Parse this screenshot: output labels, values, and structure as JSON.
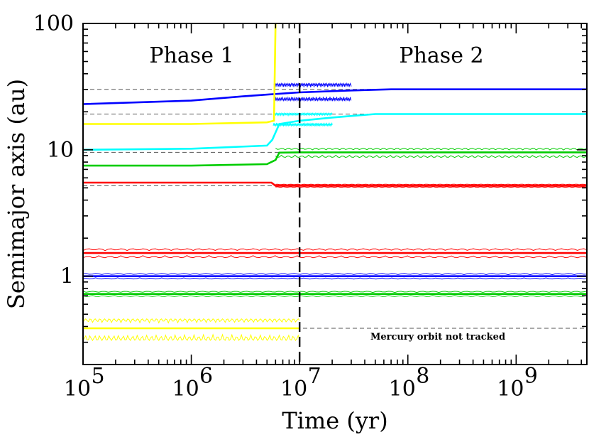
{
  "chart_data": {
    "type": "line",
    "xlabel": "Time (yr)",
    "ylabel": "Semimajor axis (au)",
    "xscale": "log",
    "yscale": "log",
    "xlim": [
      100000,
      4500000000
    ],
    "ylim": [
      0.2,
      100
    ],
    "x_ticks": [
      {
        "value": 100000,
        "base": "10",
        "exp": "5"
      },
      {
        "value": 1000000,
        "base": "10",
        "exp": "6"
      },
      {
        "value": 10000000,
        "base": "10",
        "exp": "7"
      },
      {
        "value": 100000000,
        "base": "10",
        "exp": "8"
      },
      {
        "value": 1000000000,
        "base": "10",
        "exp": "9"
      }
    ],
    "y_ticks": [
      {
        "value": 1,
        "label": "1"
      },
      {
        "value": 10,
        "label": "10"
      },
      {
        "value": 100,
        "label": "100"
      }
    ],
    "annotations": {
      "phase1": "Phase 1",
      "phase2": "Phase 2",
      "note": "Mercury orbit not tracked"
    },
    "phase_boundary_x": 10000000,
    "reference_lines_au": [
      0.387,
      0.723,
      1.0,
      1.524,
      5.2,
      9.55,
      19.2,
      30.1
    ],
    "series": [
      {
        "color": "#0000ff",
        "x": [
          100000,
          1000000,
          3000000,
          5500000,
          10000000,
          30000000,
          70000000,
          4500000000
        ],
        "a": [
          23,
          24.5,
          26.5,
          27.5,
          28.5,
          29.5,
          30.1,
          30.1
        ]
      },
      {
        "color": "#ffff00",
        "x": [
          100000,
          1000000,
          5000000,
          5800000,
          6000000
        ],
        "a": [
          16,
          16,
          16.5,
          17,
          100
        ]
      },
      {
        "color": "#00ffff",
        "x": [
          100000,
          1000000,
          5000000,
          5600000,
          6500000,
          10000000,
          20000000,
          50000000,
          4500000000
        ],
        "a": [
          10,
          10.2,
          10.8,
          12,
          16,
          17,
          18,
          19.2,
          19.2
        ]
      },
      {
        "color": "#00cc00",
        "x": [
          100000,
          1000000,
          5000000,
          6000000,
          6500000,
          10000000,
          4500000000
        ],
        "a": [
          7.5,
          7.5,
          7.7,
          8.3,
          9.5,
          9.55,
          9.55
        ]
      },
      {
        "color": "#ff0000",
        "x": [
          100000,
          5500000,
          6000000,
          4500000000
        ],
        "a": [
          5.5,
          5.5,
          5.2,
          5.2
        ]
      },
      {
        "color": "#ff0000",
        "x": [
          100000,
          4500000000
        ],
        "a": [
          1.524,
          1.524
        ]
      },
      {
        "color": "#0000ff",
        "x": [
          100000,
          4500000000
        ],
        "a": [
          1.0,
          1.0
        ]
      },
      {
        "color": "#00cc00",
        "x": [
          100000,
          4500000000
        ],
        "a": [
          0.723,
          0.723
        ]
      },
      {
        "color": "#ffff00",
        "x": [
          100000,
          10000000
        ],
        "a": [
          0.387,
          0.387
        ]
      }
    ],
    "orbit_bands": [
      {
        "color": "#ff0000",
        "a": 1.524,
        "lo": 1.4,
        "hi": 1.65,
        "x0": 100000,
        "x1": 4500000000
      },
      {
        "color": "#0000ff",
        "a": 1.0,
        "lo": 0.95,
        "hi": 1.05,
        "x0": 100000,
        "x1": 4500000000
      },
      {
        "color": "#00cc00",
        "a": 0.723,
        "lo": 0.69,
        "hi": 0.76,
        "x0": 100000,
        "x1": 4500000000
      },
      {
        "color": "#ffff00",
        "a": 0.387,
        "lo": 0.31,
        "hi": 0.46,
        "x0": 100000,
        "x1": 10000000
      },
      {
        "color": "#ff0000",
        "a": 5.2,
        "lo": 5.05,
        "hi": 5.35,
        "x0": 6000000,
        "x1": 4500000000
      },
      {
        "color": "#00cc00",
        "a": 9.55,
        "lo": 8.7,
        "hi": 10.3,
        "x0": 6000000,
        "x1": 4500000000
      },
      {
        "color": "#00ffff",
        "a": 17.5,
        "lo": 15.5,
        "hi": 19.5,
        "x0": 5700000,
        "x1": 20000000
      },
      {
        "color": "#0000ff",
        "a": 28.5,
        "lo": 24.5,
        "hi": 33.5,
        "x0": 5800000,
        "x1": 30000000
      }
    ]
  }
}
